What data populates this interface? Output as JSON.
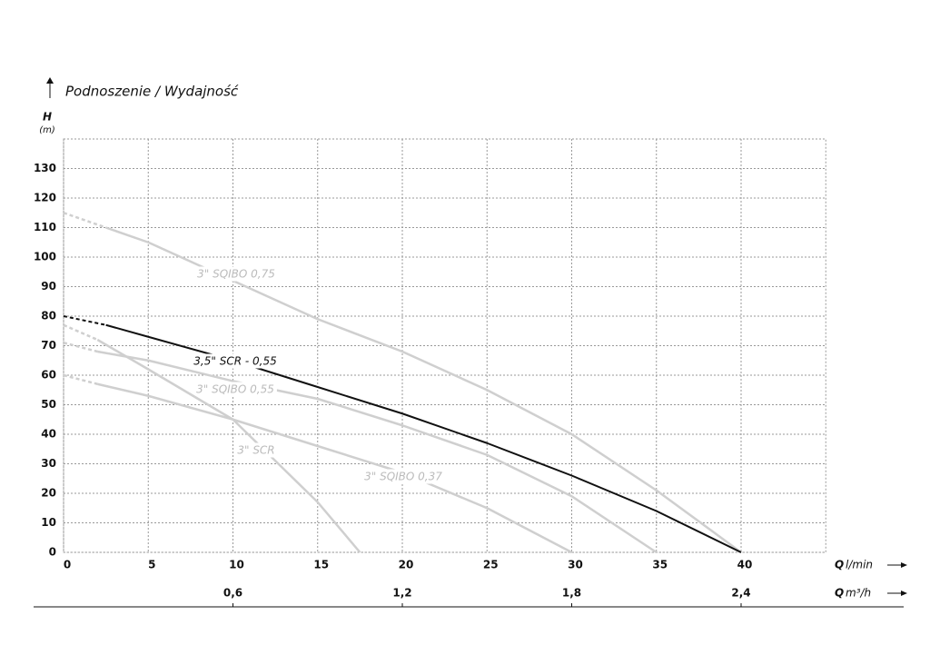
{
  "chart_data": {
    "type": "line",
    "title": "Podnoszenie / Wydajność",
    "y_label": "H",
    "y_unit": "(m)",
    "x_label": "Q",
    "x_unit": "l/min",
    "x2_label": "Q",
    "x2_unit": "m³/h",
    "xlim": [
      0,
      45
    ],
    "xticks": [
      0,
      5,
      10,
      15,
      20,
      25,
      30,
      35,
      40
    ],
    "ylim": [
      0,
      140
    ],
    "yticks": [
      0,
      10,
      20,
      30,
      40,
      50,
      60,
      70,
      80,
      90,
      100,
      110,
      120,
      130
    ],
    "x2lim": [
      0,
      2.7
    ],
    "x2ticks": [
      {
        "value": 0.6,
        "label": "0,6"
      },
      {
        "value": 1.2,
        "label": "1,2"
      },
      {
        "value": 1.8,
        "label": "1,8"
      },
      {
        "value": 2.4,
        "label": "2,4"
      }
    ],
    "grid": true,
    "series": [
      {
        "name": "3\" SQIBO 0,75",
        "color": "#cfcfcf",
        "x": [
          0,
          2.5,
          5,
          10,
          15,
          20,
          25,
          30,
          35,
          40
        ],
        "values": [
          115,
          110,
          105,
          92,
          79,
          68,
          55,
          40,
          21,
          0
        ]
      },
      {
        "name": "3,5\" SCR - 0,55",
        "color": "#111111",
        "x": [
          0,
          2.5,
          5,
          10,
          15,
          20,
          25,
          30,
          35,
          40
        ],
        "values": [
          80,
          77,
          73,
          65,
          56,
          47,
          37,
          26,
          14,
          0
        ]
      },
      {
        "name": "3\" SQIBO 0,55",
        "color": "#cfcfcf",
        "x": [
          0,
          2,
          5,
          10,
          15,
          20,
          25,
          30,
          35
        ],
        "values": [
          71,
          68,
          65,
          58,
          52,
          43,
          33,
          19,
          0
        ]
      },
      {
        "name": "3\" SCR",
        "color": "#cfcfcf",
        "x": [
          0,
          2,
          5,
          10,
          15,
          17.5
        ],
        "values": [
          77,
          72,
          62,
          45,
          17,
          0
        ]
      },
      {
        "name": "3\" SQIBO 0,37",
        "color": "#cfcfcf",
        "x": [
          0,
          2,
          5,
          10,
          15,
          20,
          25,
          30
        ],
        "values": [
          60,
          57,
          53,
          45,
          36,
          27,
          15,
          0
        ]
      }
    ]
  }
}
